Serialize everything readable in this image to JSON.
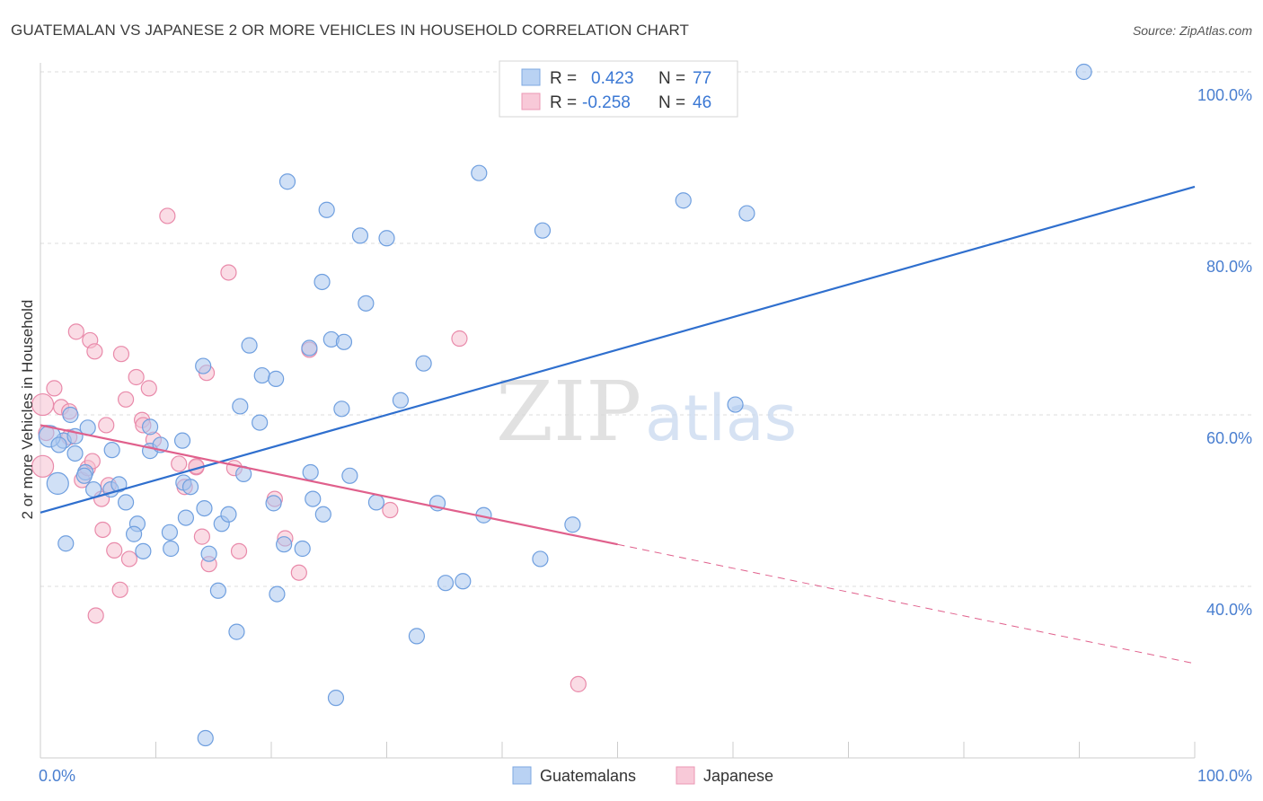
{
  "header": {
    "title": "GUATEMALAN VS JAPANESE 2 OR MORE VEHICLES IN HOUSEHOLD CORRELATION CHART",
    "source": "Source: ZipAtlas.com"
  },
  "legend": {
    "rows": [
      {
        "r_label": "R =",
        "r_value": "0.423",
        "n_label": "N =",
        "n_value": "77"
      },
      {
        "r_label": "R =",
        "r_value": "-0.258",
        "n_label": "N =",
        "n_value": "46"
      }
    ]
  },
  "bottom_legend": {
    "items": [
      "Guatemalans",
      "Japanese"
    ]
  },
  "watermark": {
    "zip": "ZIP",
    "atlas": "atlas"
  },
  "colors": {
    "blue_fill": "#a9c7ef",
    "blue_stroke": "#6f9fdf",
    "blue_line": "#2f6fce",
    "pink_fill": "#f6bfd0",
    "pink_stroke": "#e98aaa",
    "pink_line": "#e0608c",
    "grid": "#dddddd",
    "axis": "#cccccc"
  },
  "chart_data": {
    "type": "scatter",
    "title": "GUATEMALAN VS JAPANESE 2 OR MORE VEHICLES IN HOUSEHOLD CORRELATION CHART",
    "xlabel": "",
    "ylabel": "2 or more Vehicles in Household",
    "xlim": [
      0,
      100
    ],
    "ylim": [
      20,
      102
    ],
    "x_tick_labels": [
      "0.0%",
      "100.0%"
    ],
    "y_ticks": [
      40,
      60,
      80,
      100
    ],
    "y_tick_labels": [
      "40.0%",
      "60.0%",
      "80.0%",
      "100.0%"
    ],
    "grid": true,
    "legend_position": "top-center",
    "series": [
      {
        "name": "Guatemalans",
        "color": "#6f9fdf",
        "points": [
          [
            2.2,
            45
          ],
          [
            1.5,
            52
          ],
          [
            2,
            57
          ],
          [
            0.8,
            57.5
          ],
          [
            1.6,
            56.5
          ],
          [
            3,
            57.5
          ],
          [
            2.6,
            60
          ],
          [
            4.1,
            58.5
          ],
          [
            3.9,
            53.3
          ],
          [
            3,
            55.5
          ],
          [
            3.8,
            52.9
          ],
          [
            6.1,
            51.3
          ],
          [
            4.6,
            51.3
          ],
          [
            6.8,
            51.9
          ],
          [
            7.4,
            49.8
          ],
          [
            6.2,
            55.9
          ],
          [
            9.5,
            58.6
          ],
          [
            12.3,
            57
          ],
          [
            12.4,
            52.1
          ],
          [
            13,
            51.6
          ],
          [
            9.5,
            55.8
          ],
          [
            10.4,
            56.5
          ],
          [
            8.4,
            47.3
          ],
          [
            8.1,
            46.1
          ],
          [
            8.9,
            44.1
          ],
          [
            11.2,
            46.3
          ],
          [
            11.3,
            44.4
          ],
          [
            12.6,
            48
          ],
          [
            14.2,
            49.1
          ],
          [
            14.6,
            43.8
          ],
          [
            15.4,
            39.5
          ],
          [
            15.7,
            47.3
          ],
          [
            16.3,
            48.4
          ],
          [
            17,
            34.7
          ],
          [
            17.3,
            61
          ],
          [
            17.6,
            53.1
          ],
          [
            18.1,
            68.1
          ],
          [
            19,
            59.1
          ],
          [
            19.2,
            64.6
          ],
          [
            20.2,
            49.7
          ],
          [
            20.5,
            39.1
          ],
          [
            20.4,
            64.2
          ],
          [
            21.1,
            44.9
          ],
          [
            21.4,
            87.2
          ],
          [
            22.7,
            44.4
          ],
          [
            23.4,
            53.3
          ],
          [
            23.3,
            67.8
          ],
          [
            23.6,
            50.2
          ],
          [
            24.4,
            75.5
          ],
          [
            24.5,
            48.4
          ],
          [
            24.8,
            83.9
          ],
          [
            25.2,
            68.8
          ],
          [
            25.6,
            27
          ],
          [
            26.1,
            60.7
          ],
          [
            26.3,
            68.5
          ],
          [
            26.8,
            52.9
          ],
          [
            27.7,
            80.9
          ],
          [
            28.2,
            73
          ],
          [
            29.1,
            49.8
          ],
          [
            30,
            80.6
          ],
          [
            31.2,
            61.7
          ],
          [
            32.6,
            34.2
          ],
          [
            33.2,
            66
          ],
          [
            34.4,
            49.7
          ],
          [
            35.1,
            40.4
          ],
          [
            36.6,
            40.6
          ],
          [
            38,
            88.2
          ],
          [
            38.4,
            48.3
          ],
          [
            43.3,
            43.2
          ],
          [
            43.5,
            81.5
          ],
          [
            46.1,
            47.2
          ],
          [
            55.7,
            85
          ],
          [
            60.2,
            61.2
          ],
          [
            61.2,
            83.5
          ],
          [
            90.4,
            100
          ],
          [
            14.3,
            22.3
          ],
          [
            14.1,
            65.7
          ]
        ]
      },
      {
        "name": "Japanese",
        "color": "#e98aaa",
        "points": [
          [
            0.2,
            54
          ],
          [
            0.2,
            61.2
          ],
          [
            0.5,
            57.9
          ],
          [
            1.2,
            63.1
          ],
          [
            1.8,
            60.9
          ],
          [
            2.5,
            57.4
          ],
          [
            2.5,
            60.4
          ],
          [
            3.1,
            69.7
          ],
          [
            3.6,
            52.4
          ],
          [
            4.1,
            53.8
          ],
          [
            4.3,
            68.7
          ],
          [
            4.5,
            54.6
          ],
          [
            4.7,
            67.4
          ],
          [
            4.8,
            36.6
          ],
          [
            5.4,
            46.6
          ],
          [
            5.3,
            50.2
          ],
          [
            5.7,
            58.8
          ],
          [
            5.9,
            51.8
          ],
          [
            6.4,
            44.2
          ],
          [
            6.9,
            39.6
          ],
          [
            7,
            67.1
          ],
          [
            7.4,
            61.8
          ],
          [
            7.7,
            43.2
          ],
          [
            8.3,
            64.4
          ],
          [
            8.8,
            59.4
          ],
          [
            8.9,
            58.8
          ],
          [
            9.4,
            63.1
          ],
          [
            9.8,
            57.1
          ],
          [
            11,
            83.2
          ],
          [
            12,
            54.3
          ],
          [
            12.5,
            51.6
          ],
          [
            13.5,
            53.9
          ],
          [
            14,
            45.8
          ],
          [
            14.4,
            64.9
          ],
          [
            14.6,
            42.6
          ],
          [
            16.3,
            76.6
          ],
          [
            16.8,
            53.8
          ],
          [
            17.2,
            44.1
          ],
          [
            20.3,
            50.2
          ],
          [
            21.2,
            45.6
          ],
          [
            22.4,
            41.6
          ],
          [
            23.3,
            67.6
          ],
          [
            30.3,
            48.9
          ],
          [
            36.3,
            68.9
          ],
          [
            46.6,
            28.6
          ],
          [
            13.5,
            54
          ]
        ]
      }
    ],
    "trend_lines": [
      {
        "series": "Guatemalans",
        "x": [
          0,
          100
        ],
        "y": [
          48.6,
          86.6
        ],
        "style": "solid"
      },
      {
        "series": "Japanese",
        "x": [
          0,
          50
        ],
        "y": [
          58.8,
          44.9
        ],
        "style": "solid"
      },
      {
        "series": "Japanese",
        "x": [
          50,
          100
        ],
        "y": [
          44.9,
          31
        ],
        "style": "dashed"
      }
    ]
  }
}
